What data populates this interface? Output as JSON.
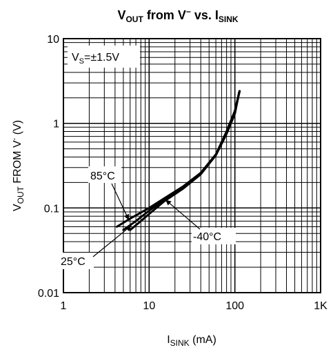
{
  "chart_data": {
    "type": "line",
    "title": {
      "main": "V",
      "main_sub": "OUT",
      "mid": " from V",
      "mid_sup": "−",
      "tail": " vs. I",
      "tail_sub": "SINK"
    },
    "xlabel": {
      "main": "I",
      "sub": "SINK",
      "tail": " (mA)"
    },
    "ylabel": {
      "main": "V",
      "sub": "OUT",
      "tail1": " FROM V",
      "sup": "-",
      "tail2": " (V)"
    },
    "x_scale": "log",
    "y_scale": "log",
    "xlim": [
      1,
      1000
    ],
    "ylim": [
      0.01,
      10
    ],
    "x_ticks": [
      {
        "value": 1,
        "label": "1"
      },
      {
        "value": 10,
        "label": "10"
      },
      {
        "value": 100,
        "label": "100"
      },
      {
        "value": 1000,
        "label": "1K"
      }
    ],
    "y_ticks": [
      {
        "value": 10,
        "label": "10"
      },
      {
        "value": 1,
        "label": "1"
      },
      {
        "value": 0.1,
        "label": "0.1"
      },
      {
        "value": 0.01,
        "label": "0.01"
      }
    ],
    "grid": true,
    "condition": {
      "main": "V",
      "sub": "S",
      "tail": "=±1.5V"
    },
    "series": [
      {
        "name": "85°C",
        "color": "#000000",
        "x": [
          4.2,
          6,
          10,
          15,
          25,
          40,
          60,
          80,
          100,
          112
        ],
        "y": [
          0.06,
          0.075,
          0.1,
          0.13,
          0.18,
          0.26,
          0.42,
          0.75,
          1.3,
          2.3
        ]
      },
      {
        "name": "25°C",
        "color": "#000000",
        "x": [
          5,
          7,
          10,
          15,
          25,
          40,
          60,
          80,
          100,
          113
        ],
        "y": [
          0.055,
          0.07,
          0.093,
          0.125,
          0.175,
          0.26,
          0.43,
          0.8,
          1.4,
          2.4
        ]
      },
      {
        "name": "-40°C",
        "color": "#000000",
        "x": [
          6,
          8,
          10,
          15,
          25,
          40,
          60,
          80,
          100,
          114
        ],
        "y": [
          0.055,
          0.07,
          0.085,
          0.12,
          0.17,
          0.25,
          0.42,
          0.8,
          1.4,
          2.4
        ]
      }
    ],
    "annotations": [
      {
        "text": "85°C",
        "series": "85°C",
        "target_x": 5.8,
        "target_y": 0.072
      },
      {
        "text": "25°C",
        "series": "25°C",
        "target_x": 6.2,
        "target_y": 0.062
      },
      {
        "text": "-40°C",
        "series": "-40°C",
        "target_x": 15.5,
        "target_y": 0.125
      }
    ]
  }
}
